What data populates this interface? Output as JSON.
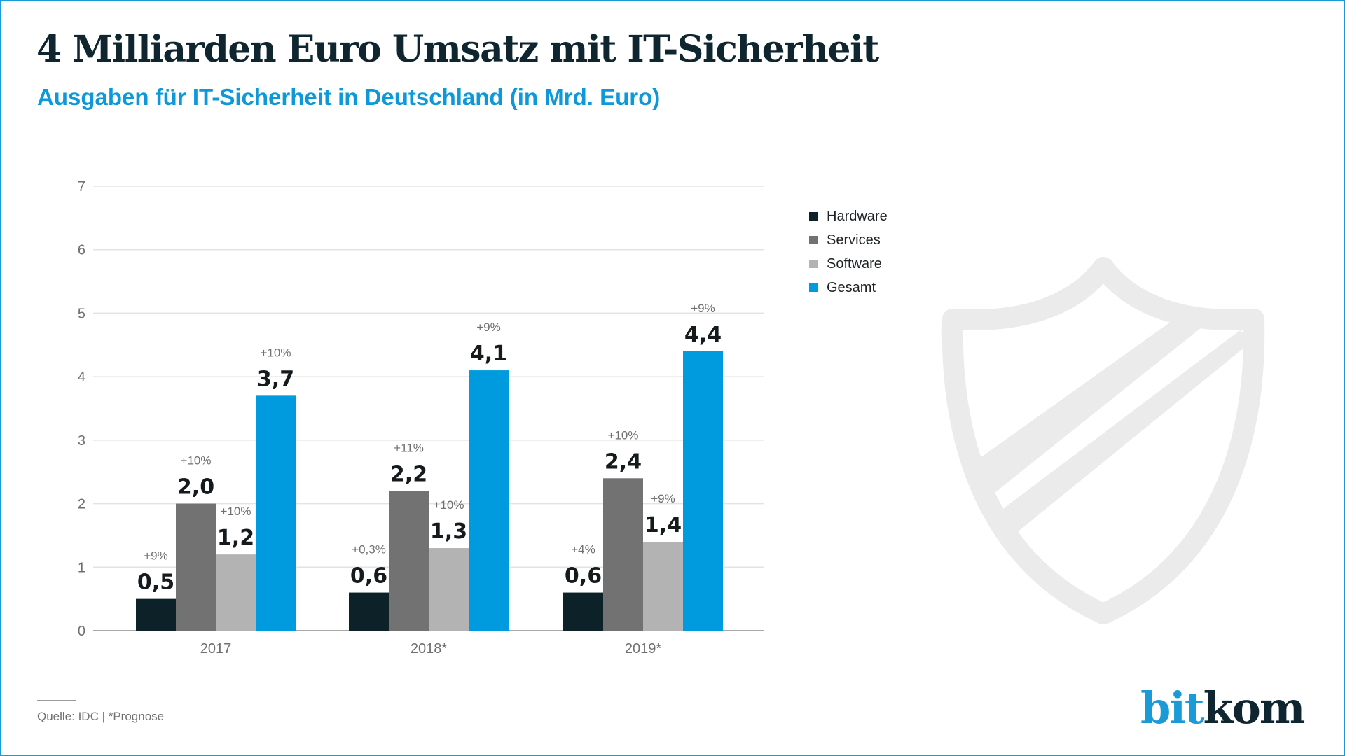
{
  "title": "4 Milliarden Euro Umsatz mit IT-Sicherheit",
  "subtitle": "Ausgaben für IT-Sicherheit in Deutschland (in Mrd. Euro)",
  "footer": {
    "source": "Quelle: IDC | *Prognose"
  },
  "logo": {
    "part1": "bit",
    "part2": "kom"
  },
  "decoration": {
    "icon": "shield-icon",
    "color": "#ebebeb"
  },
  "chart_data": {
    "type": "bar",
    "title": "4 Milliarden Euro Umsatz mit IT-Sicherheit",
    "subtitle": "Ausgaben für IT-Sicherheit in Deutschland (in Mrd. Euro)",
    "xlabel": "",
    "ylabel": "",
    "categories": [
      "2017",
      "2018*",
      "2019*"
    ],
    "ylim": [
      0,
      7
    ],
    "yticks": [
      "0",
      "1",
      "2",
      "3",
      "4",
      "5",
      "6",
      "7"
    ],
    "grid": true,
    "legend_position": "right",
    "series": [
      {
        "name": "Hardware",
        "color": "#0d2129",
        "values": [
          0.5,
          0.6,
          0.6
        ],
        "labels": [
          "0,5",
          "0,6",
          "0,6"
        ],
        "changes": [
          "+9%",
          "+0,3%",
          "+4%"
        ]
      },
      {
        "name": "Services",
        "color": "#727272",
        "values": [
          2.0,
          2.2,
          2.4
        ],
        "labels": [
          "2,0",
          "2,2",
          "2,4"
        ],
        "changes": [
          "+10%",
          "+11%",
          "+10%"
        ]
      },
      {
        "name": "Software",
        "color": "#b3b3b4",
        "values": [
          1.2,
          1.3,
          1.4
        ],
        "labels": [
          "1,2",
          "1,3",
          "1,4"
        ],
        "changes": [
          "+10%",
          "+10%",
          "+9%"
        ]
      },
      {
        "name": "Gesamt",
        "color": "#009bdf",
        "values": [
          3.7,
          4.1,
          4.4
        ],
        "labels": [
          "3,7",
          "4,1",
          "4,4"
        ],
        "changes": [
          "+10%",
          "+9%",
          "+9%"
        ]
      }
    ]
  }
}
